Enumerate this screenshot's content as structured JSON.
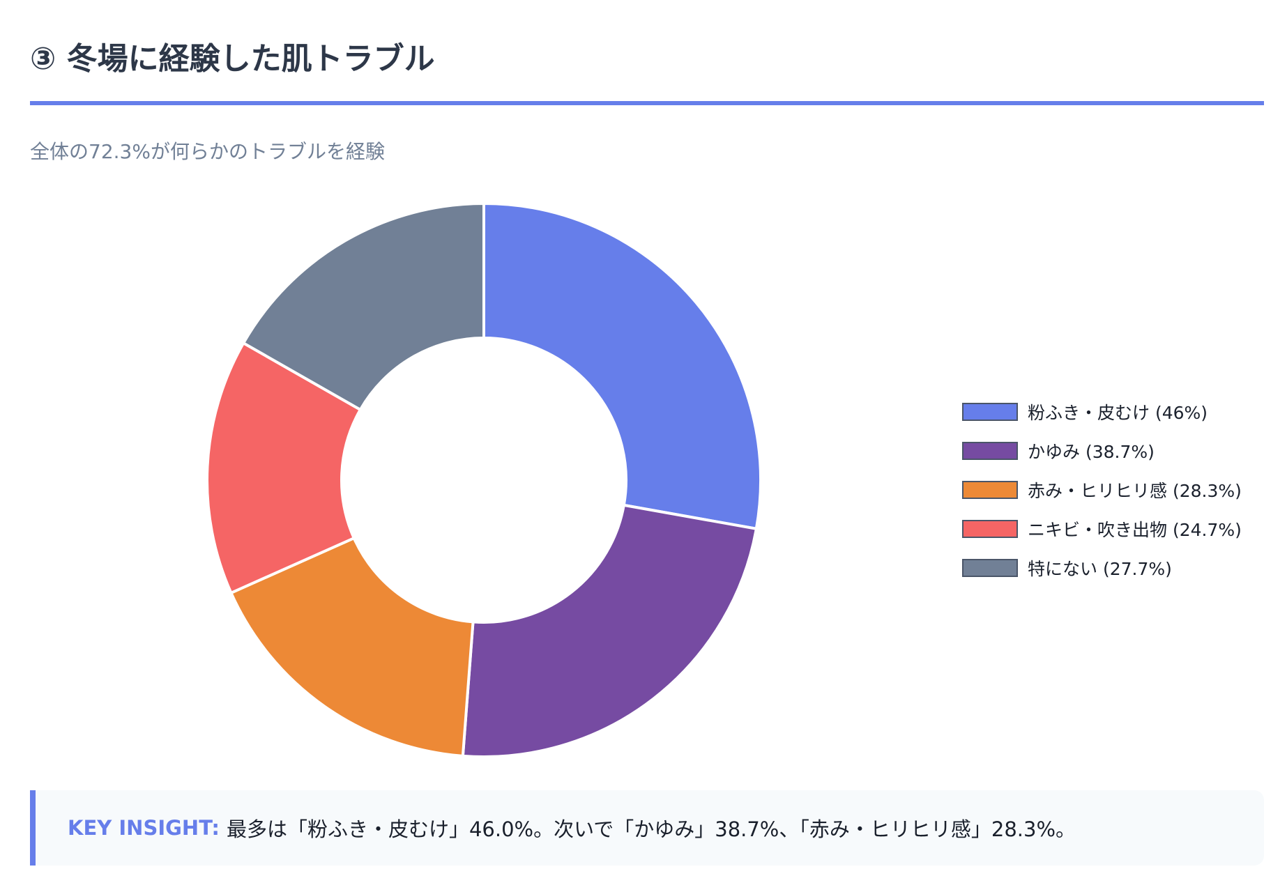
{
  "header": {
    "title": "③ 冬場に経験した肌トラブル",
    "subtitle": "全体の72.3%が何らかのトラブルを経験"
  },
  "legend": [
    "粉ふき・皮むけ (46%)",
    "かゆみ (38.7%)",
    "赤み・ヒリヒリ感 (28.3%)",
    "ニキビ・吹き出物 (24.7%)",
    "特にない (27.7%)"
  ],
  "insight": {
    "label": "KEY INSIGHT:",
    "text": "最多は「粉ふき・皮むけ」46.0%。次いで「かゆみ」38.7%、「赤み・ヒリヒリ感」28.3%。"
  },
  "chart_data": {
    "type": "doughnut",
    "title": "③ 冬場に経験した肌トラブル",
    "categories": [
      "粉ふき・皮むけ",
      "かゆみ",
      "赤み・ヒリヒリ感",
      "ニキビ・吹き出物",
      "特にない"
    ],
    "values": [
      46,
      38.7,
      28.3,
      24.7,
      27.7
    ],
    "unit": "%",
    "colors": [
      "#667eea",
      "#764ba2",
      "#ed8936",
      "#f56565",
      "#718096"
    ],
    "legend_position": "right"
  }
}
